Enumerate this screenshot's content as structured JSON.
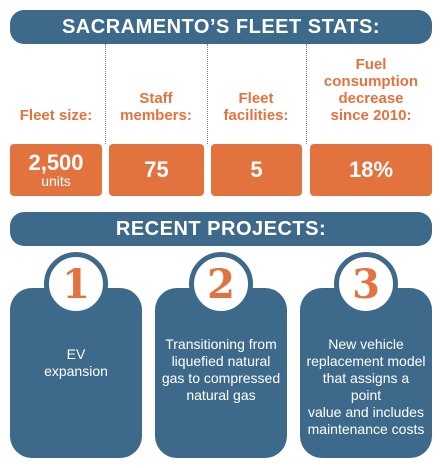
{
  "header": {
    "title": "SACRAMENTO’S FLEET STATS:"
  },
  "stats": [
    {
      "label_lines": [
        "Fleet size:"
      ],
      "value": "2,500",
      "unit": "units"
    },
    {
      "label_lines": [
        "Staff",
        "members:"
      ],
      "value": "75",
      "unit": ""
    },
    {
      "label_lines": [
        "Fleet",
        "facilities:"
      ],
      "value": "5",
      "unit": ""
    },
    {
      "label_lines": [
        "Fuel",
        "consumption",
        "decrease",
        "since 2010:"
      ],
      "value": "18%",
      "unit": ""
    }
  ],
  "projects_header": {
    "title": "RECENT PROJECTS:"
  },
  "projects": [
    {
      "number": "1",
      "text_lines": [
        "EV",
        "expansion"
      ]
    },
    {
      "number": "2",
      "text_lines": [
        "Transitioning from",
        "liquefied natural",
        "gas to compressed",
        "natural gas"
      ]
    },
    {
      "number": "3",
      "text_lines": [
        "New vehicle",
        "replacement model",
        "that assigns a point",
        "value and includes",
        "maintenance costs"
      ]
    }
  ],
  "colors": {
    "blue": "#3d6a8a",
    "orange": "#e2733e"
  }
}
